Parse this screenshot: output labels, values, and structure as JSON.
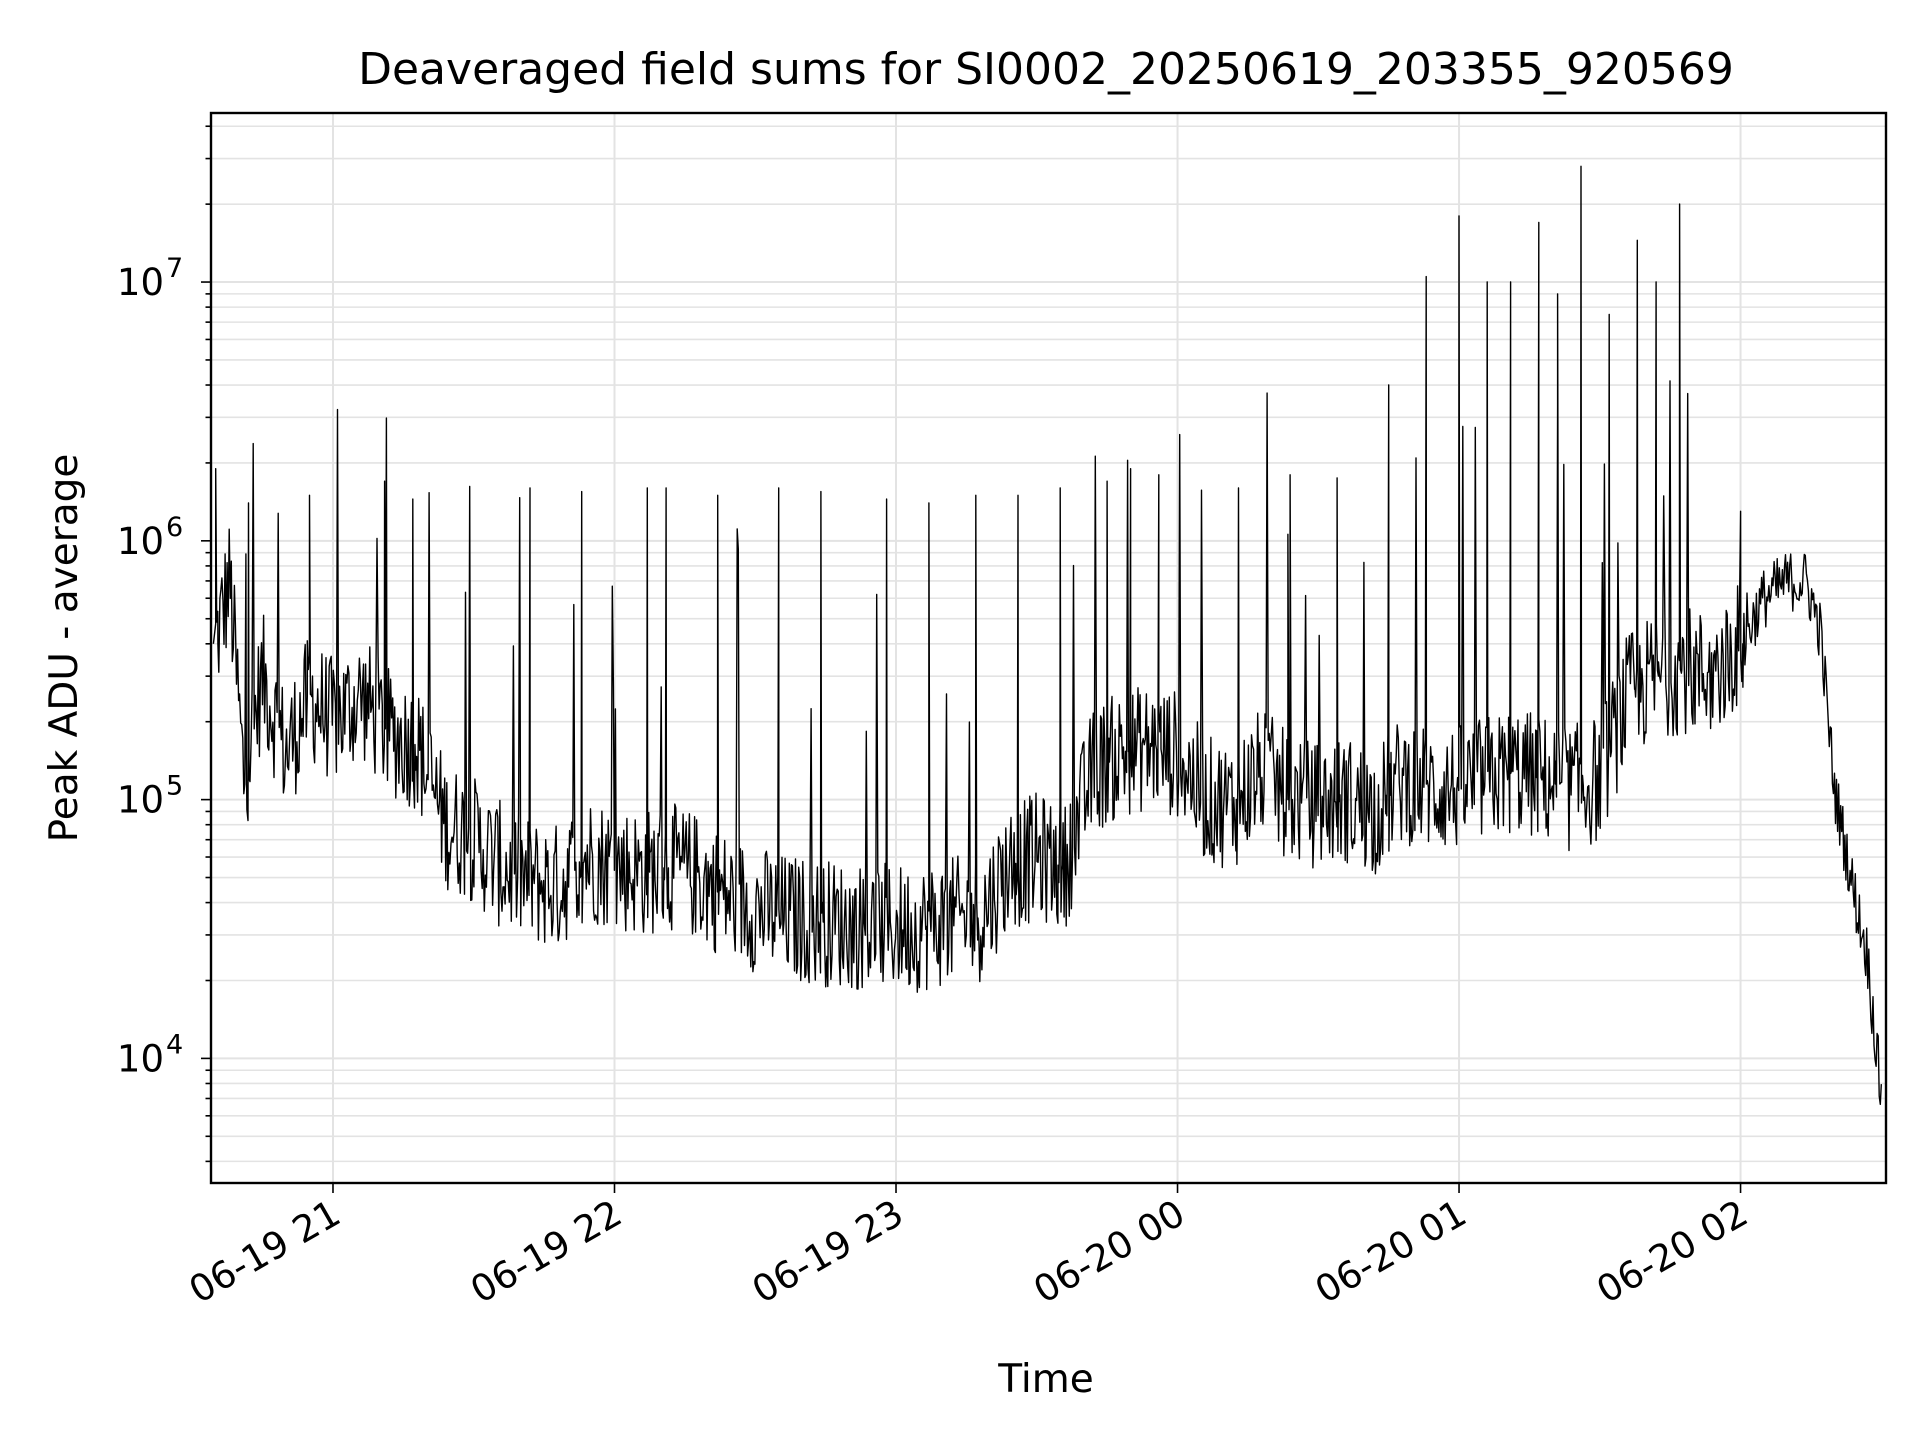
{
  "chart_data": {
    "type": "line",
    "title": "Deaveraged field sums for SI0002_20250619_203355_920569",
    "xlabel": "Time",
    "ylabel": "Peak ADU - average",
    "x_axis": {
      "type": "datetime",
      "range": [
        "2025-06-19 20:34",
        "2025-06-20 02:31"
      ],
      "ticks": [
        "06-19 21",
        "06-19 22",
        "06-19 23",
        "06-20 00",
        "06-20 01",
        "06-20 02"
      ],
      "tick_rotation": "30 degrees"
    },
    "y_axis": {
      "scale": "log",
      "range": [
        3300,
        45000000
      ],
      "ticks": [
        {
          "base": "10",
          "exp": "4"
        },
        {
          "base": "10",
          "exp": "5"
        },
        {
          "base": "10",
          "exp": "6"
        },
        {
          "base": "10",
          "exp": "7"
        }
      ]
    },
    "grid": "on (major and minor, light gray)",
    "line_color": "#000000",
    "series": [
      {
        "values": [
          [
            "2025-06-19 20:35",
            400000
          ],
          [
            "2025-06-19 20:38",
            700000
          ],
          [
            "2025-06-19 20:41",
            120000
          ],
          [
            "2025-06-19 20:45",
            300000
          ],
          [
            "2025-06-19 20:50",
            150000
          ],
          [
            "2025-06-19 20:55",
            250000
          ],
          [
            "2025-06-19 21:00",
            200000
          ],
          [
            "2025-06-19 21:06",
            250000
          ],
          [
            "2025-06-19 21:12",
            180000
          ],
          [
            "2025-06-19 21:18",
            160000
          ],
          [
            "2025-06-19 21:24",
            80000
          ],
          [
            "2025-06-19 21:30",
            70000
          ],
          [
            "2025-06-19 21:36",
            55000
          ],
          [
            "2025-06-19 21:42",
            48000
          ],
          [
            "2025-06-19 21:48",
            46000
          ],
          [
            "2025-06-19 21:54",
            60000
          ],
          [
            "2025-06-19 22:00",
            55000
          ],
          [
            "2025-06-19 22:06",
            52000
          ],
          [
            "2025-06-19 22:12",
            55000
          ],
          [
            "2025-06-19 22:18",
            50000
          ],
          [
            "2025-06-19 22:24",
            42000
          ],
          [
            "2025-06-19 22:30",
            38000
          ],
          [
            "2025-06-19 22:36",
            35000
          ],
          [
            "2025-06-19 22:42",
            34000
          ],
          [
            "2025-06-19 22:48",
            33000
          ],
          [
            "2025-06-19 22:54",
            32000
          ],
          [
            "2025-06-19 23:00",
            32000
          ],
          [
            "2025-06-19 23:06",
            32000
          ],
          [
            "2025-06-19 23:12",
            34000
          ],
          [
            "2025-06-19 23:18",
            35000
          ],
          [
            "2025-06-19 23:24",
            55000
          ],
          [
            "2025-06-19 23:30",
            60000
          ],
          [
            "2025-06-19 23:36",
            55000
          ],
          [
            "2025-06-19 23:42",
            130000
          ],
          [
            "2025-06-19 23:48",
            150000
          ],
          [
            "2025-06-19 23:54",
            160000
          ],
          [
            "2025-06-20 00:00",
            150000
          ],
          [
            "2025-06-20 00:06",
            100000
          ],
          [
            "2025-06-20 00:12",
            95000
          ],
          [
            "2025-06-20 00:18",
            130000
          ],
          [
            "2025-06-20 00:24",
            100000
          ],
          [
            "2025-06-20 00:30",
            95000
          ],
          [
            "2025-06-20 00:36",
            100000
          ],
          [
            "2025-06-20 00:42",
            90000
          ],
          [
            "2025-06-20 00:48",
            120000
          ],
          [
            "2025-06-20 00:54",
            110000
          ],
          [
            "2025-06-20 01:00",
            110000
          ],
          [
            "2025-06-20 01:06",
            120000
          ],
          [
            "2025-06-20 01:12",
            130000
          ],
          [
            "2025-06-20 01:18",
            120000
          ],
          [
            "2025-06-20 01:24",
            110000
          ],
          [
            "2025-06-20 01:30",
            120000
          ],
          [
            "2025-06-20 01:36",
            250000
          ],
          [
            "2025-06-20 01:42",
            300000
          ],
          [
            "2025-06-20 01:48",
            320000
          ],
          [
            "2025-06-20 01:54",
            300000
          ],
          [
            "2025-06-20 02:00",
            400000
          ],
          [
            "2025-06-20 02:05",
            600000
          ],
          [
            "2025-06-20 02:10",
            700000
          ],
          [
            "2025-06-20 02:14",
            700000
          ],
          [
            "2025-06-20 02:17",
            450000
          ],
          [
            "2025-06-20 02:20",
            110000
          ],
          [
            "2025-06-20 02:24",
            45000
          ],
          [
            "2025-06-20 02:27",
            25000
          ],
          [
            "2025-06-20 02:30",
            7000
          ]
        ]
      }
    ],
    "spikes": [
      [
        "2025-06-19 20:35",
        1900000
      ],
      [
        "2025-06-19 20:42",
        1400000
      ],
      [
        "2025-06-19 20:55",
        1500000
      ],
      [
        "2025-06-19 21:11",
        1700000
      ],
      [
        "2025-06-19 21:17",
        1450000
      ],
      [
        "2025-06-19 21:42",
        1600000
      ],
      [
        "2025-06-19 21:53",
        1550000
      ],
      [
        "2025-06-19 22:07",
        1600000
      ],
      [
        "2025-06-19 22:11",
        1600000
      ],
      [
        "2025-06-19 22:22",
        1500000
      ],
      [
        "2025-06-19 22:35",
        1600000
      ],
      [
        "2025-06-19 22:44",
        1550000
      ],
      [
        "2025-06-19 22:58",
        1450000
      ],
      [
        "2025-06-19 23:07",
        1400000
      ],
      [
        "2025-06-19 23:17",
        1500000
      ],
      [
        "2025-06-19 23:26",
        1500000
      ],
      [
        "2025-06-19 23:35",
        1600000
      ],
      [
        "2025-06-19 23:45",
        1700000
      ],
      [
        "2025-06-19 23:50",
        1900000
      ],
      [
        "2025-06-19 23:56",
        1800000
      ],
      [
        "2025-06-20 00:13",
        1600000
      ],
      [
        "2025-06-20 00:24",
        1800000
      ],
      [
        "2025-06-20 00:34",
        1750000
      ],
      [
        "2025-06-20 00:45",
        4000000
      ],
      [
        "2025-06-20 00:53",
        10500000
      ],
      [
        "2025-06-20 01:00",
        18000000
      ],
      [
        "2025-06-20 01:06",
        10000000
      ],
      [
        "2025-06-20 01:11",
        10000000
      ],
      [
        "2025-06-20 01:17",
        17000000
      ],
      [
        "2025-06-20 01:21",
        9000000
      ],
      [
        "2025-06-20 01:26",
        28000000
      ],
      [
        "2025-06-20 01:32",
        7500000
      ],
      [
        "2025-06-20 01:38",
        14500000
      ],
      [
        "2025-06-20 01:42",
        10000000
      ],
      [
        "2025-06-20 01:47",
        20000000
      ],
      [
        "2025-06-20 02:00",
        1300000
      ]
    ]
  }
}
